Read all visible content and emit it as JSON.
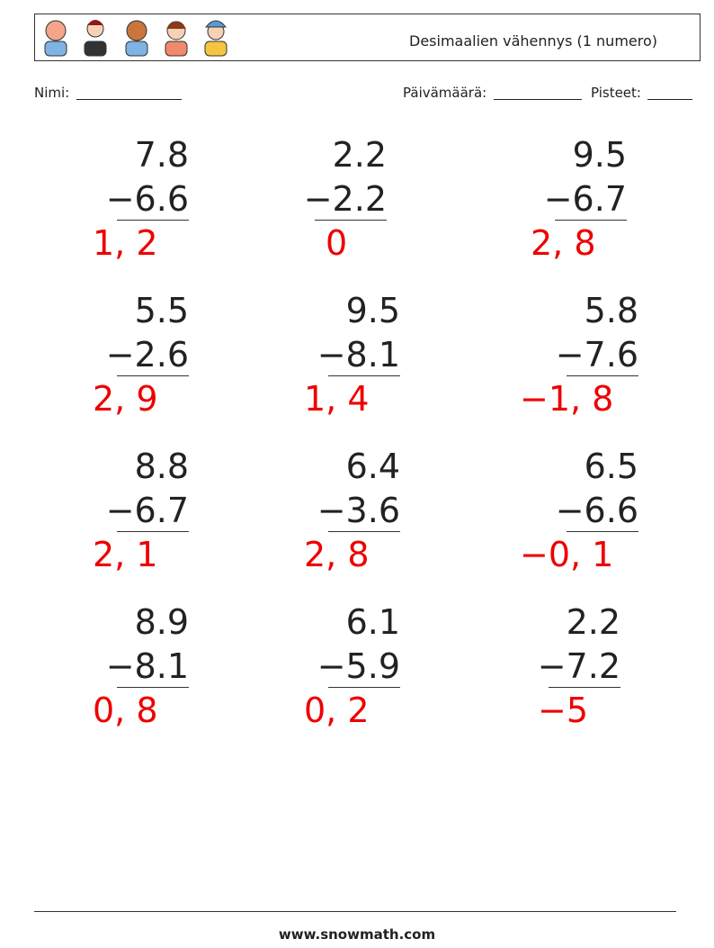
{
  "header": {
    "title": "Desimaalien vähennys (1 numero)"
  },
  "fields": {
    "name": "Nimi:",
    "date": "Päivämäärä:",
    "score": "Pisteet:"
  },
  "problems": [
    {
      "top": "7.8",
      "bottom": "−6.6",
      "answer": "1, 2"
    },
    {
      "top": "2.2",
      "bottom": "−2.2",
      "answer": "0"
    },
    {
      "top": "9.5",
      "bottom": "−6.7",
      "answer": "2, 8"
    },
    {
      "top": "5.5",
      "bottom": "−2.6",
      "answer": "2, 9"
    },
    {
      "top": "9.5",
      "bottom": "−8.1",
      "answer": "1, 4"
    },
    {
      "top": "5.8",
      "bottom": "−7.6",
      "answer": "−1, 8"
    },
    {
      "top": "8.8",
      "bottom": "−6.7",
      "answer": "2, 1"
    },
    {
      "top": "6.4",
      "bottom": "−3.6",
      "answer": "2, 8"
    },
    {
      "top": "6.5",
      "bottom": "−6.6",
      "answer": "−0, 1"
    },
    {
      "top": "8.9",
      "bottom": "−8.1",
      "answer": "0, 8"
    },
    {
      "top": "6.1",
      "bottom": "−5.9",
      "answer": "0, 2"
    },
    {
      "top": "2.2",
      "bottom": "−7.2",
      "answer": "−5"
    }
  ],
  "footer": {
    "url": "www.snowmath.com"
  }
}
